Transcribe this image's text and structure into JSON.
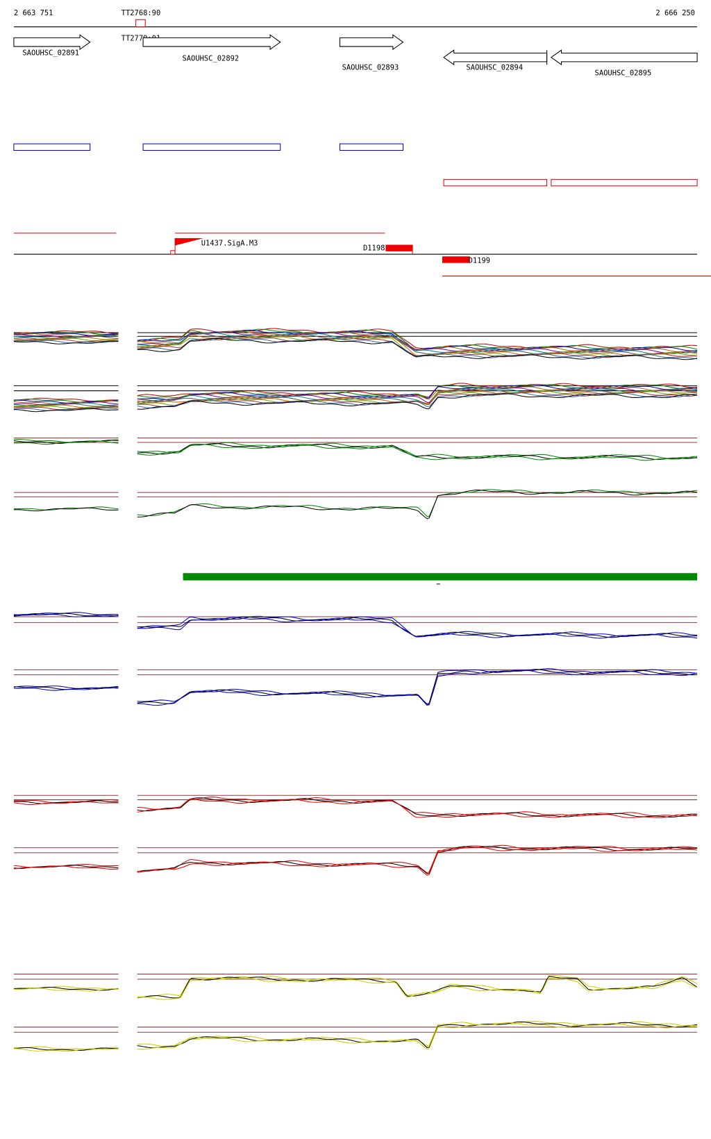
{
  "ruler": {
    "start": "2 663 751",
    "end": "2 666 250"
  },
  "terminators": [
    "TT2768:90",
    "TT2770:01"
  ],
  "genes": [
    "SAOUHSC_02891",
    "SAOUHSC_02892",
    "SAOUHSC_02893",
    "SAOUHSC_02894",
    "SAOUHSC_02895"
  ],
  "promoter": "U1437.SigA.M3",
  "segments": [
    "D1198",
    "D1199"
  ]
}
